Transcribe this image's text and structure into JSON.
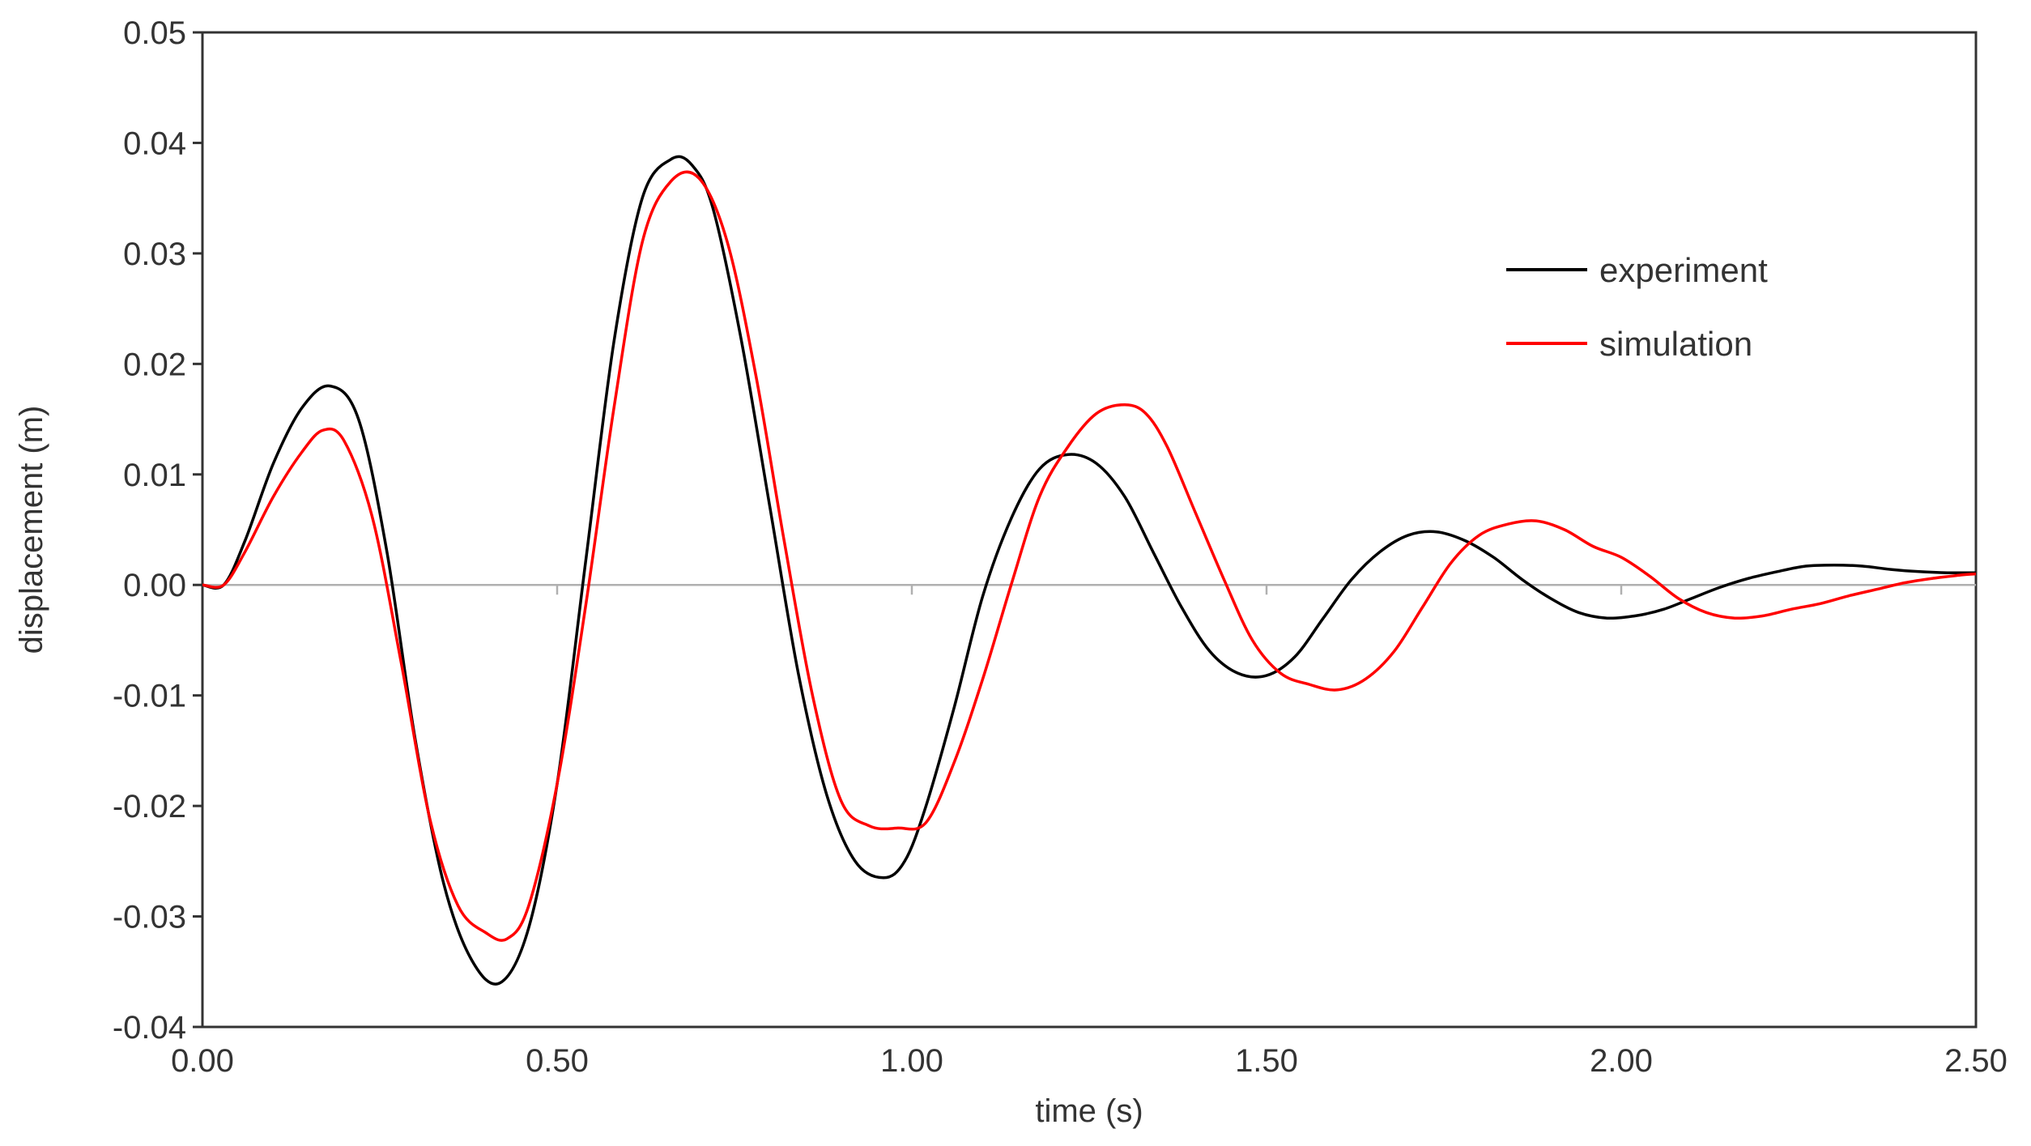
{
  "chart_data": {
    "type": "line",
    "title": "",
    "xlabel": "time (s)",
    "ylabel": "displacement  (m)",
    "xlim": [
      0,
      2.5
    ],
    "ylim": [
      -0.04,
      0.05
    ],
    "xticks": [
      0,
      0.5,
      1.0,
      1.5,
      2.0,
      2.5
    ],
    "xtick_labels": [
      "0.00",
      "0.50",
      "1.00",
      "1.50",
      "2.00",
      "2.50"
    ],
    "yticks": [
      0.05,
      0.04,
      0.03,
      0.02,
      0.01,
      0.0,
      -0.01,
      -0.02,
      -0.03,
      -0.04
    ],
    "ytick_labels": [
      "0.05",
      "0.04",
      "0.03",
      "0.02",
      "0.01",
      "0.00",
      "-0.01",
      "-0.02",
      "-0.03",
      "-0.04"
    ],
    "grid": false,
    "zero_line": true,
    "legend_position": "right",
    "series": [
      {
        "name": "experiment",
        "color": "#000000",
        "x": [
          0.0,
          0.03,
          0.06,
          0.1,
          0.14,
          0.18,
          0.22,
          0.26,
          0.3,
          0.34,
          0.38,
          0.42,
          0.46,
          0.5,
          0.54,
          0.58,
          0.62,
          0.66,
          0.69,
          0.72,
          0.76,
          0.8,
          0.84,
          0.88,
          0.92,
          0.96,
          0.99,
          1.02,
          1.06,
          1.1,
          1.14,
          1.18,
          1.22,
          1.26,
          1.3,
          1.34,
          1.38,
          1.42,
          1.46,
          1.5,
          1.54,
          1.58,
          1.62,
          1.66,
          1.7,
          1.74,
          1.78,
          1.82,
          1.86,
          1.9,
          1.94,
          1.98,
          2.02,
          2.06,
          2.1,
          2.14,
          2.18,
          2.22,
          2.26,
          2.3,
          2.34,
          2.38,
          2.42,
          2.46,
          2.5
        ],
        "y": [
          0.0,
          0.0,
          0.004,
          0.011,
          0.016,
          0.018,
          0.015,
          0.003,
          -0.014,
          -0.027,
          -0.034,
          -0.036,
          -0.031,
          -0.018,
          0.002,
          0.022,
          0.035,
          0.0385,
          0.038,
          0.034,
          0.022,
          0.007,
          -0.008,
          -0.019,
          -0.025,
          -0.0265,
          -0.025,
          -0.02,
          -0.011,
          -0.001,
          0.006,
          0.0105,
          0.0118,
          0.011,
          0.008,
          0.003,
          -0.002,
          -0.006,
          -0.008,
          -0.0082,
          -0.0065,
          -0.003,
          0.0005,
          0.003,
          0.0045,
          0.0048,
          0.004,
          0.0025,
          0.0005,
          -0.0012,
          -0.0025,
          -0.003,
          -0.0028,
          -0.0022,
          -0.0012,
          -0.0002,
          0.0006,
          0.0012,
          0.0017,
          0.0018,
          0.0017,
          0.0014,
          0.0012,
          0.0011,
          0.0011
        ]
      },
      {
        "name": "simulation",
        "color": "#ff0000",
        "x": [
          0.0,
          0.03,
          0.06,
          0.1,
          0.14,
          0.17,
          0.2,
          0.24,
          0.28,
          0.32,
          0.36,
          0.4,
          0.43,
          0.46,
          0.5,
          0.54,
          0.58,
          0.62,
          0.66,
          0.7,
          0.74,
          0.78,
          0.82,
          0.86,
          0.9,
          0.94,
          0.98,
          1.02,
          1.06,
          1.1,
          1.14,
          1.18,
          1.22,
          1.26,
          1.3,
          1.33,
          1.36,
          1.4,
          1.44,
          1.48,
          1.52,
          1.56,
          1.6,
          1.64,
          1.68,
          1.72,
          1.76,
          1.8,
          1.84,
          1.88,
          1.92,
          1.96,
          2.0,
          2.04,
          2.08,
          2.12,
          2.16,
          2.2,
          2.24,
          2.28,
          2.32,
          2.36,
          2.4,
          2.44,
          2.48,
          2.5
        ],
        "y": [
          0.0,
          0.0,
          0.003,
          0.008,
          0.012,
          0.014,
          0.013,
          0.006,
          -0.007,
          -0.021,
          -0.029,
          -0.0315,
          -0.032,
          -0.029,
          -0.018,
          -0.002,
          0.016,
          0.031,
          0.0365,
          0.0368,
          0.031,
          0.019,
          0.004,
          -0.01,
          -0.0195,
          -0.0218,
          -0.022,
          -0.0215,
          -0.016,
          -0.0085,
          0.0,
          0.008,
          0.0125,
          0.0155,
          0.0163,
          0.0155,
          0.0125,
          0.0065,
          0.0005,
          -0.005,
          -0.008,
          -0.009,
          -0.0095,
          -0.0085,
          -0.006,
          -0.002,
          0.002,
          0.0045,
          0.0055,
          0.0058,
          0.005,
          0.0035,
          0.0025,
          0.0008,
          -0.0012,
          -0.0025,
          -0.003,
          -0.0028,
          -0.0022,
          -0.0017,
          -0.001,
          -0.0004,
          0.0002,
          0.0006,
          0.0009,
          0.001
        ]
      }
    ]
  }
}
